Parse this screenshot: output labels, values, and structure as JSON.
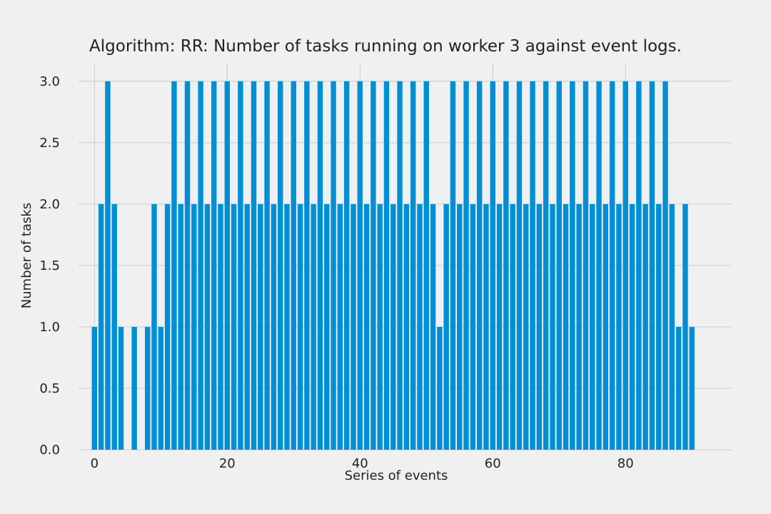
{
  "chart_data": {
    "type": "bar",
    "title": "Algorithm: RR: Number of tasks running on worker 3 against event logs.",
    "xlabel": "Series of events",
    "ylabel": "Number of tasks",
    "x": [
      0,
      1,
      2,
      3,
      4,
      5,
      6,
      7,
      8,
      9,
      10,
      11,
      12,
      13,
      14,
      15,
      16,
      17,
      18,
      19,
      20,
      21,
      22,
      23,
      24,
      25,
      26,
      27,
      28,
      29,
      30,
      31,
      32,
      33,
      34,
      35,
      36,
      37,
      38,
      39,
      40,
      41,
      42,
      43,
      44,
      45,
      46,
      47,
      48,
      49,
      50,
      51,
      52,
      53,
      54,
      55,
      56,
      57,
      58,
      59,
      60,
      61,
      62,
      63,
      64,
      65,
      66,
      67,
      68,
      69,
      70,
      71,
      72,
      73,
      74,
      75,
      76,
      77,
      78,
      79,
      80,
      81,
      82,
      83,
      84,
      85,
      86,
      87,
      88,
      89,
      90
    ],
    "values": [
      1,
      2,
      3,
      2,
      1,
      0,
      1,
      0,
      1,
      2,
      1,
      2,
      3,
      2,
      3,
      2,
      3,
      2,
      3,
      2,
      3,
      2,
      3,
      2,
      3,
      2,
      3,
      2,
      3,
      2,
      3,
      2,
      3,
      2,
      3,
      2,
      3,
      2,
      3,
      2,
      3,
      2,
      3,
      2,
      3,
      2,
      3,
      2,
      3,
      2,
      3,
      2,
      1,
      2,
      3,
      2,
      3,
      2,
      3,
      2,
      3,
      2,
      3,
      2,
      3,
      2,
      3,
      2,
      3,
      2,
      3,
      2,
      3,
      2,
      3,
      2,
      3,
      2,
      3,
      2,
      3,
      2,
      3,
      2,
      3,
      2,
      3,
      2,
      1,
      2,
      1
    ],
    "xlim": [
      -2.4,
      96
    ],
    "ylim": [
      0,
      3.15
    ],
    "xticks": [
      0,
      20,
      40,
      60,
      80
    ],
    "yticks": [
      0.0,
      0.5,
      1.0,
      1.5,
      2.0,
      2.5,
      3.0
    ],
    "xtick_labels": [
      "0",
      "20",
      "40",
      "60",
      "80"
    ],
    "ytick_labels": [
      "0.0",
      "0.5",
      "1.0",
      "1.5",
      "2.0",
      "2.5",
      "3.0"
    ],
    "grid": true,
    "colors": {
      "bar": "#008fd5",
      "background": "#f0f0f0",
      "grid": "#cbcbcb"
    }
  }
}
